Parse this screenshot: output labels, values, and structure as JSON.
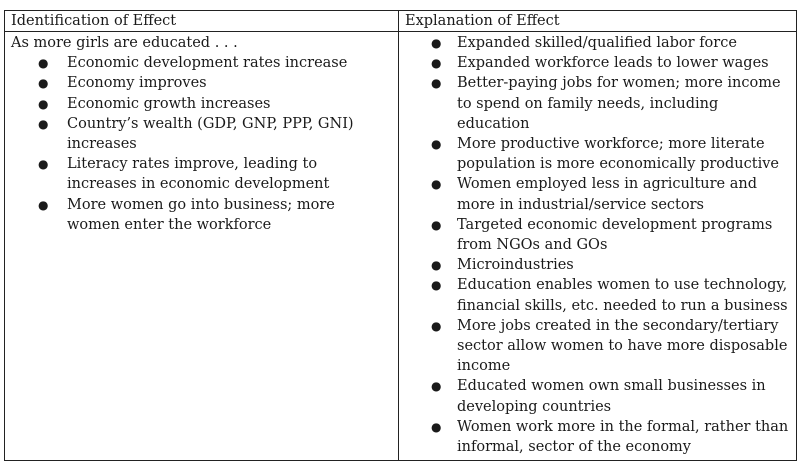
{
  "table": {
    "headers": [
      "Identification of Effect",
      "Explanation of Effect"
    ],
    "left": {
      "intro": "As more girls are educated . . .",
      "items": [
        "Economic development rates increase",
        "Economy improves",
        "Economic growth increases",
        "Country’s wealth (GDP, GNP, PPP, GNI) increases",
        "Literacy rates improve, leading to increases in economic development",
        "More women go into business; more women enter the workforce"
      ]
    },
    "right": {
      "items": [
        "Expanded skilled/qualified labor force",
        "Expanded workforce leads to lower wages",
        "Better-paying jobs for women; more income to spend on family needs, including education",
        "More productive workforce; more literate population is more economically productive",
        "Women employed less in agriculture and more in industrial/service sectors",
        "Targeted economic development programs from NGOs and GOs",
        "Microindustries",
        "Education enables women to use technology, financial skills, etc. needed to run a business",
        "More jobs created in the secondary/tertiary sector allow women to have more disposable income",
        "Educated women own small businesses in developing countries",
        "Women work more in the formal, rather than informal, sector of the economy"
      ]
    }
  }
}
